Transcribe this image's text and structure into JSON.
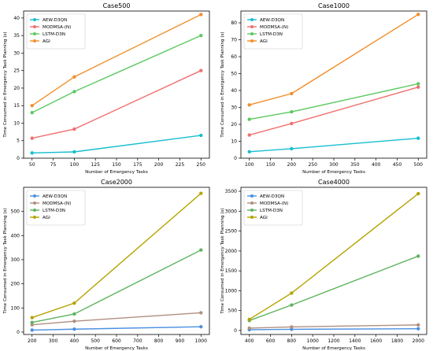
{
  "chart_data": [
    {
      "type": "line",
      "title": "Case500",
      "xlabel": "Number of Emergency Tasks",
      "ylabel": "Time Consumed in Emergency Task Planning (s)",
      "xlim": [
        40,
        260
      ],
      "ylim": [
        0,
        42
      ],
      "xticks": [
        50,
        75,
        100,
        125,
        150,
        175,
        200,
        225,
        250
      ],
      "yticks": [
        0,
        5,
        10,
        15,
        20,
        25,
        30,
        35,
        40
      ],
      "x": [
        50,
        100,
        250
      ],
      "legend_position": "top-left",
      "series": [
        {
          "name": "AEW-D3QN",
          "color": "#17becf",
          "values": [
            1.5,
            1.8,
            6.5
          ]
        },
        {
          "name": "MODMSA-(N)",
          "color": "#f07070",
          "values": [
            5.7,
            8.3,
            25
          ]
        },
        {
          "name": "LSTM-D3N",
          "color": "#5dc962",
          "values": [
            13,
            19,
            35
          ]
        },
        {
          "name": "AGI",
          "color": "#f28e2b",
          "values": [
            15,
            23.2,
            41
          ]
        }
      ]
    },
    {
      "type": "line",
      "title": "Case1000",
      "xlabel": "Number of Emergency Tasks",
      "ylabel": "Time Consumed in Emergency Task Planning (s)",
      "xlim": [
        80,
        520
      ],
      "ylim": [
        0,
        87
      ],
      "xticks": [
        100,
        150,
        200,
        250,
        300,
        350,
        400,
        450,
        500
      ],
      "yticks": [
        0,
        10,
        20,
        30,
        40,
        50,
        60,
        70,
        80
      ],
      "x": [
        100,
        200,
        500
      ],
      "legend_position": "top-left",
      "series": [
        {
          "name": "AEW-D3QN",
          "color": "#17becf",
          "values": [
            3.8,
            5.6,
            11.8
          ]
        },
        {
          "name": "MODMSA-(N)",
          "color": "#f07070",
          "values": [
            13.7,
            20.5,
            42
          ]
        },
        {
          "name": "LSTM-D3N",
          "color": "#5dc962",
          "values": [
            23,
            27.4,
            44
          ]
        },
        {
          "name": "AGI",
          "color": "#f28e2b",
          "values": [
            31.5,
            38.2,
            85
          ]
        }
      ]
    },
    {
      "type": "line",
      "title": "Case2000",
      "xlabel": "Number of Emergency Tasks",
      "ylabel": "Time Consumed in Emergency Task Planning (s)",
      "xlim": [
        160,
        1040
      ],
      "ylim": [
        -10,
        600
      ],
      "xticks": [
        200,
        300,
        400,
        500,
        600,
        700,
        800,
        900,
        1000
      ],
      "yticks": [
        0,
        100,
        200,
        300,
        400,
        500
      ],
      "x": [
        200,
        400,
        1000
      ],
      "legend_position": "top-left",
      "series": [
        {
          "name": "AEW-D3QN",
          "color": "#4a90e2",
          "values": [
            8,
            12,
            22
          ]
        },
        {
          "name": "MODMSA-(N)",
          "color": "#b08f80",
          "values": [
            30,
            45,
            80
          ]
        },
        {
          "name": "LSTM-D3N",
          "color": "#5fb35f",
          "values": [
            40,
            75,
            340
          ]
        },
        {
          "name": "AGI",
          "color": "#b5a400",
          "values": [
            60,
            120,
            575
          ]
        }
      ]
    },
    {
      "type": "line",
      "title": "Case4000",
      "xlabel": "Number of Emergency Tasks",
      "ylabel": "Time Consumed in Emergency Task Planning (s)",
      "xlim": [
        320,
        2080
      ],
      "ylim": [
        -100,
        3600
      ],
      "xticks": [
        400,
        600,
        800,
        1000,
        1200,
        1400,
        1600,
        1800,
        2000
      ],
      "yticks": [
        0,
        500,
        1000,
        1500,
        2000,
        2500,
        3000,
        3500
      ],
      "x": [
        400,
        800,
        2000
      ],
      "legend_position": "top-left",
      "series": [
        {
          "name": "AEW-D3QN",
          "color": "#4a90e2",
          "values": [
            20,
            30,
            45
          ]
        },
        {
          "name": "MODMSA-(N)",
          "color": "#b08f80",
          "values": [
            60,
            90,
            140
          ]
        },
        {
          "name": "LSTM-D3N",
          "color": "#5fb35f",
          "values": [
            250,
            640,
            1870
          ]
        },
        {
          "name": "AGI",
          "color": "#b5a400",
          "values": [
            280,
            940,
            3440
          ]
        }
      ]
    }
  ]
}
